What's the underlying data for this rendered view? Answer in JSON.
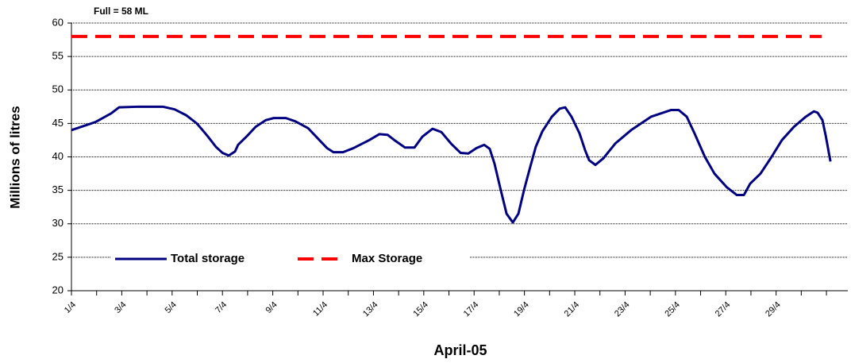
{
  "chart_data": {
    "type": "line",
    "annotation": "Full = 58 ML",
    "x_label": "April-05",
    "y_label": "Millions of litres",
    "xlim": [
      1,
      31.85
    ],
    "xticks": [
      {
        "value": 1,
        "label": "1/4"
      },
      {
        "value": 2,
        "label": null
      },
      {
        "value": 3,
        "label": "3/4"
      },
      {
        "value": 4,
        "label": null
      },
      {
        "value": 5,
        "label": "5/4"
      },
      {
        "value": 6,
        "label": null
      },
      {
        "value": 7,
        "label": "7/4"
      },
      {
        "value": 8,
        "label": null
      },
      {
        "value": 9,
        "label": "9/4"
      },
      {
        "value": 10,
        "label": null
      },
      {
        "value": 11,
        "label": "11/4"
      },
      {
        "value": 12,
        "label": null
      },
      {
        "value": 13,
        "label": "13/4"
      },
      {
        "value": 14,
        "label": null
      },
      {
        "value": 15,
        "label": "15/4"
      },
      {
        "value": 16,
        "label": null
      },
      {
        "value": 17,
        "label": "17/4"
      },
      {
        "value": 18,
        "label": null
      },
      {
        "value": 19,
        "label": "19/4"
      },
      {
        "value": 20,
        "label": null
      },
      {
        "value": 21,
        "label": "21/4"
      },
      {
        "value": 22,
        "label": null
      },
      {
        "value": 23,
        "label": "23/4"
      },
      {
        "value": 24,
        "label": null
      },
      {
        "value": 25,
        "label": "25/4"
      },
      {
        "value": 26,
        "label": null
      },
      {
        "value": 27,
        "label": "27/4"
      },
      {
        "value": 28,
        "label": null
      },
      {
        "value": 29,
        "label": "29/4"
      },
      {
        "value": 30,
        "label": null
      },
      {
        "value": 31,
        "label": null
      }
    ],
    "ylim": [
      20,
      60
    ],
    "yticks": [
      20,
      25,
      30,
      35,
      40,
      45,
      50,
      55,
      60
    ],
    "grid": true,
    "legend_position": "bottom",
    "series": [
      {
        "name": "Total storage",
        "color": "#000080",
        "style": "solid",
        "x": [
          1.0,
          1.95,
          2.58,
          2.89,
          3.68,
          4.63,
          5.1,
          5.57,
          5.98,
          6.21,
          6.43,
          6.74,
          7.0,
          7.25,
          7.5,
          7.62,
          8.0,
          8.32,
          8.73,
          9.04,
          9.52,
          9.9,
          10.4,
          10.78,
          11.16,
          11.41,
          11.79,
          12.2,
          12.83,
          13.24,
          13.56,
          13.87,
          14.25,
          14.63,
          14.94,
          15.35,
          15.7,
          16.08,
          16.46,
          16.77,
          17.09,
          17.4,
          17.62,
          17.81,
          18.03,
          18.29,
          18.54,
          18.76,
          18.98,
          19.23,
          19.45,
          19.71,
          20.09,
          20.4,
          20.62,
          20.87,
          21.19,
          21.41,
          21.57,
          21.82,
          22.14,
          22.61,
          23.24,
          24.03,
          24.82,
          25.13,
          25.45,
          25.76,
          26.17,
          26.55,
          27.03,
          27.44,
          27.72,
          27.97,
          28.38,
          28.82,
          29.23,
          29.71,
          30.18,
          30.5,
          30.65,
          30.84,
          30.97,
          31.16
        ],
        "values": [
          44,
          45.2,
          46.5,
          47.4,
          47.5,
          47.5,
          47.1,
          46.2,
          45,
          44,
          43,
          41.5,
          40.6,
          40.2,
          40.8,
          41.8,
          43.2,
          44.5,
          45.5,
          45.8,
          45.8,
          45.3,
          44.3,
          42.8,
          41.3,
          40.7,
          40.7,
          41.3,
          42.5,
          43.4,
          43.3,
          42.4,
          41.4,
          41.4,
          43,
          44.2,
          43.7,
          42,
          40.6,
          40.5,
          41.3,
          41.8,
          41.2,
          39,
          35.5,
          31.5,
          30.2,
          31.5,
          35,
          38.5,
          41.5,
          43.8,
          46,
          47.2,
          47.4,
          46,
          43.5,
          41,
          39.5,
          38.8,
          39.8,
          42,
          44,
          46,
          47,
          47,
          46,
          43.5,
          40,
          37.5,
          35.5,
          34.3,
          34.3,
          36,
          37.5,
          40,
          42.5,
          44.5,
          46,
          46.8,
          46.6,
          45.5,
          43.2,
          39.3
        ]
      },
      {
        "name": "Max Storage",
        "color": "#ff0000",
        "style": "dashed",
        "x": [
          1,
          30.81
        ],
        "values": [
          58,
          58
        ]
      }
    ]
  }
}
